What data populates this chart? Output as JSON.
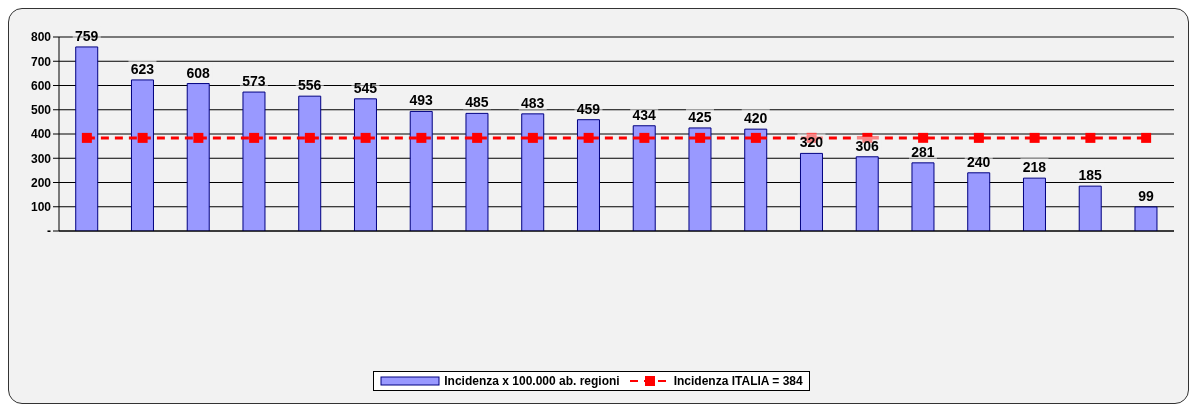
{
  "chart_data": {
    "type": "bar",
    "categories": [
      null,
      null,
      null,
      null,
      null,
      null,
      null,
      null,
      null,
      null,
      null,
      null,
      null,
      null,
      null,
      null,
      null,
      null,
      null,
      null
    ],
    "series": [
      {
        "name": "Incidenza x 100.000 ab. regioni",
        "color": "#9999ff",
        "values": [
          759,
          623,
          608,
          573,
          556,
          545,
          493,
          485,
          483,
          459,
          434,
          425,
          420,
          320,
          306,
          281,
          240,
          218,
          185,
          99
        ],
        "value_labels": [
          "759",
          "623",
          "608",
          "573",
          "556",
          "545",
          "493",
          "485",
          "483",
          "459",
          "434",
          "425",
          "420",
          "320",
          "306",
          "281",
          "240",
          "218",
          "185",
          "99"
        ]
      },
      {
        "name": "Incidenza ITALIA = 384",
        "type": "line",
        "color": "#ff0000",
        "line_style": "dashed",
        "marker": "square",
        "values": [
          384,
          384,
          384,
          384,
          384,
          384,
          384,
          384,
          384,
          384,
          384,
          384,
          384,
          384,
          384,
          384,
          384,
          384,
          384,
          384
        ]
      }
    ],
    "ylim": [
      0,
      800
    ],
    "yticks": [
      {
        "value": 0,
        "label": "-"
      },
      100,
      200,
      300,
      400,
      500,
      600,
      700,
      800
    ],
    "grid": "y",
    "legend": "bottom"
  }
}
